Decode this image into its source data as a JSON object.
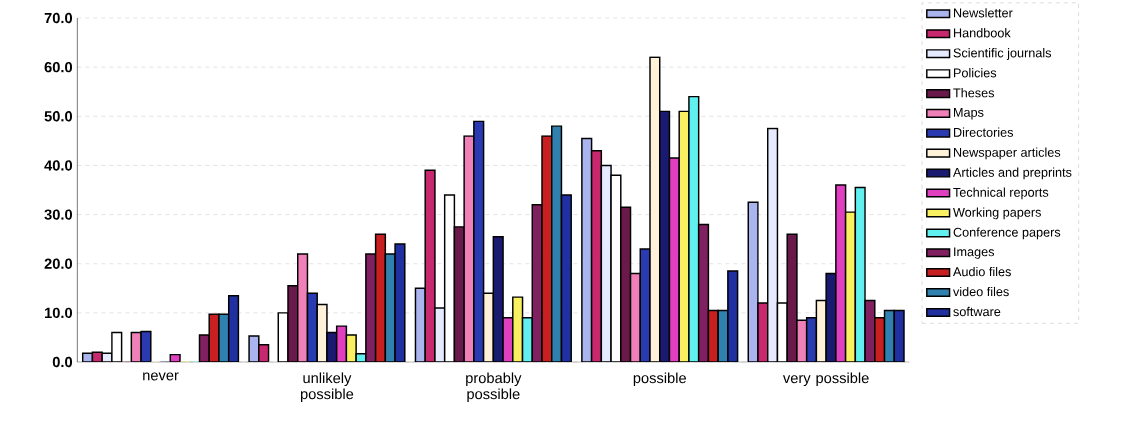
{
  "chart_data": {
    "type": "bar",
    "categories": [
      "never",
      "unlikely possible",
      "probably possible",
      "possible",
      "very possible"
    ],
    "ylim": [
      0,
      70
    ],
    "yticks": [
      {
        "value": 0,
        "label": "0.0"
      },
      {
        "value": 10,
        "label": "10.0"
      },
      {
        "value": 20,
        "label": "20.0"
      },
      {
        "value": 30,
        "label": "30.0"
      },
      {
        "value": 40,
        "label": "40.0"
      },
      {
        "value": 50,
        "label": "50.0"
      },
      {
        "value": 60,
        "label": "60.0"
      },
      {
        "value": 70,
        "label": "70.0"
      }
    ],
    "grid": "y",
    "legend": "right",
    "series": [
      {
        "name": "Newsletter",
        "color": "#aab4ee",
        "values": [
          1.8,
          5.3,
          15,
          45.5,
          32.5
        ]
      },
      {
        "name": "Handbook",
        "color": "#c8286e",
        "values": [
          2,
          3.5,
          39,
          43,
          12
        ]
      },
      {
        "name": "Scientific journals",
        "color": "#e6eaff",
        "values": [
          1.8,
          0,
          11,
          40,
          47.5
        ]
      },
      {
        "name": "Policies",
        "color": "#ffffff",
        "values": [
          6,
          10,
          34,
          38,
          12
        ]
      },
      {
        "name": "Theses",
        "color": "#6a1a4a",
        "values": [
          0,
          15.5,
          27.5,
          31.5,
          26
        ]
      },
      {
        "name": "Maps",
        "color": "#f080b8",
        "values": [
          6,
          22,
          46,
          18,
          8.5
        ]
      },
      {
        "name": "Directories",
        "color": "#2a3ab0",
        "values": [
          6.2,
          14,
          49,
          23,
          9
        ]
      },
      {
        "name": "Newspaper articles",
        "color": "#fff2d8",
        "values": [
          0,
          11.7,
          14,
          62,
          12.5
        ]
      },
      {
        "name": "Articles and preprints",
        "color": "#1a1a70",
        "values": [
          0,
          6,
          25.5,
          51,
          18
        ]
      },
      {
        "name": "Technical reports",
        "color": "#e040c0",
        "values": [
          1.5,
          7.3,
          9,
          41.5,
          36
        ]
      },
      {
        "name": "Working papers",
        "color": "#f8f060",
        "values": [
          0,
          5.5,
          13.2,
          51,
          30.5
        ]
      },
      {
        "name": "Conference papers",
        "color": "#60f0f0",
        "values": [
          0,
          1.7,
          9,
          54,
          35.5
        ]
      },
      {
        "name": "Images",
        "color": "#802060",
        "values": [
          5.5,
          22,
          32,
          28,
          12.5
        ]
      },
      {
        "name": "Audio files",
        "color": "#c82020",
        "values": [
          9.7,
          26,
          46,
          10.5,
          9
        ]
      },
      {
        "name": "video files",
        "color": "#3080b0",
        "values": [
          9.7,
          22,
          48,
          10.5,
          10.5
        ]
      },
      {
        "name": "software",
        "color": "#2030a0",
        "values": [
          13.5,
          24,
          34,
          18.5,
          10.5
        ]
      }
    ]
  }
}
